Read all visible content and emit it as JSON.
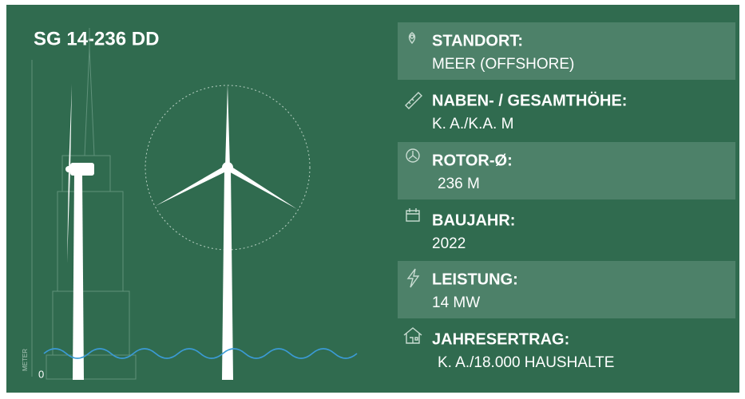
{
  "title": "SG 14-236 DD",
  "axis_label": "METER",
  "axis_zero": "0",
  "specs": [
    {
      "label": "STANDORT:",
      "value": "MEER (OFFSHORE)"
    },
    {
      "label": "NABEN- / GESAMTHÖHE:",
      "value": "K. A./K.A. M"
    },
    {
      "label": "ROTOR-Ø:",
      "value": "236 M"
    },
    {
      "label": "BAUJAHR:",
      "value": "2022"
    },
    {
      "label": "LEISTUNG:",
      "value": "14 MW"
    },
    {
      "label": "JAHRESERTRAG:",
      "value": "K. A./18.000 HAUSHALTE"
    }
  ]
}
